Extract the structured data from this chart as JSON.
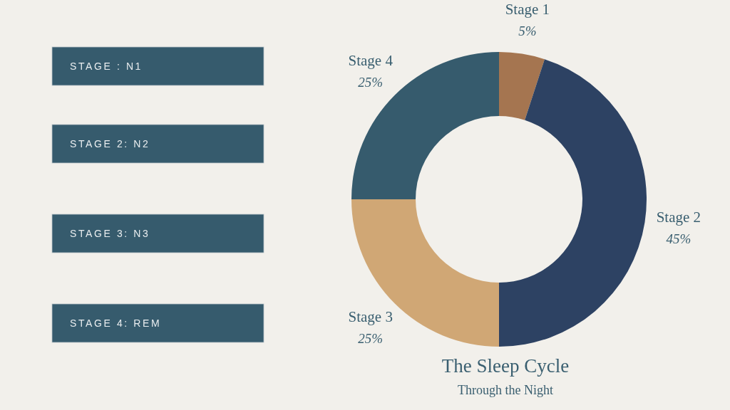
{
  "chart_data": [
    {
      "type": "other",
      "annotations": [
        "STAGE : N1",
        "STAGE 2: N2",
        "STAGE 3: N3",
        "STAGE 4: REM"
      ]
    },
    {
      "type": "donut",
      "title": "The Sleep Cycle",
      "subtitle": "Through the Night",
      "categories": [
        "Stage 1",
        "Stage 2",
        "Stage 3",
        "Stage 4"
      ],
      "values": [
        5,
        45,
        25,
        25
      ],
      "colors": [
        "#a57550",
        "#2d4263",
        "#d0a775",
        "#365b6d"
      ],
      "value_labels": [
        "5%",
        "45%",
        "25%",
        "25%"
      ]
    }
  ]
}
